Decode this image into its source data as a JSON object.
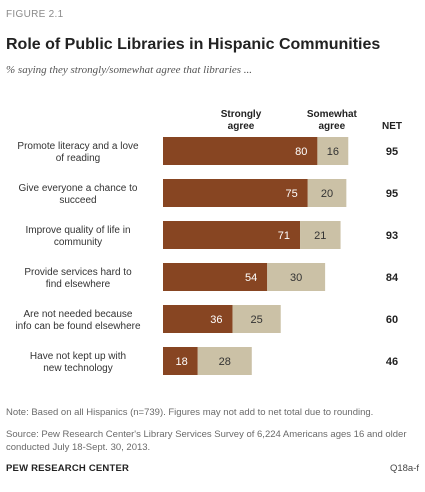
{
  "figure_label": "FIGURE 2.1",
  "title": "Role of Public Libraries in Hispanic Communities",
  "subtitle": "% saying they strongly/somewhat agree that libraries ...",
  "note": "Note: Based on all Hispanics (n=739). Figures may not add to net total due to rounding.",
  "source": "Source: Pew Research Center's Library Services Survey of 6,224 Americans ages 16 and older conducted July 18-Sept. 30, 2013.",
  "org": "PEW RESEARCH CENTER",
  "code": "Q18a-f",
  "chart_data": {
    "type": "bar",
    "orientation": "horizontal",
    "stacked": true,
    "column_headers": {
      "strongly": [
        "Strongly",
        "agree"
      ],
      "somewhat": [
        "Somewhat",
        "agree"
      ],
      "net": "NET"
    },
    "categories": [
      [
        "Promote literacy and a love",
        "of reading"
      ],
      [
        "Give everyone a chance to",
        "succeed"
      ],
      [
        "Improve quality of life in",
        "community"
      ],
      [
        "Provide services hard to",
        "find elsewhere"
      ],
      [
        "Are not needed because",
        "info can be found elsewhere"
      ],
      [
        "Have not kept up with",
        "new technology"
      ]
    ],
    "series": [
      {
        "name": "Strongly agree",
        "color": "#874522",
        "values": [
          80,
          75,
          71,
          54,
          36,
          18
        ]
      },
      {
        "name": "Somewhat agree",
        "color": "#cbc1a6",
        "values": [
          16,
          20,
          21,
          30,
          25,
          28
        ]
      }
    ],
    "net": [
      95,
      95,
      93,
      84,
      60,
      46
    ],
    "legend": "column-headers",
    "grid": false
  }
}
